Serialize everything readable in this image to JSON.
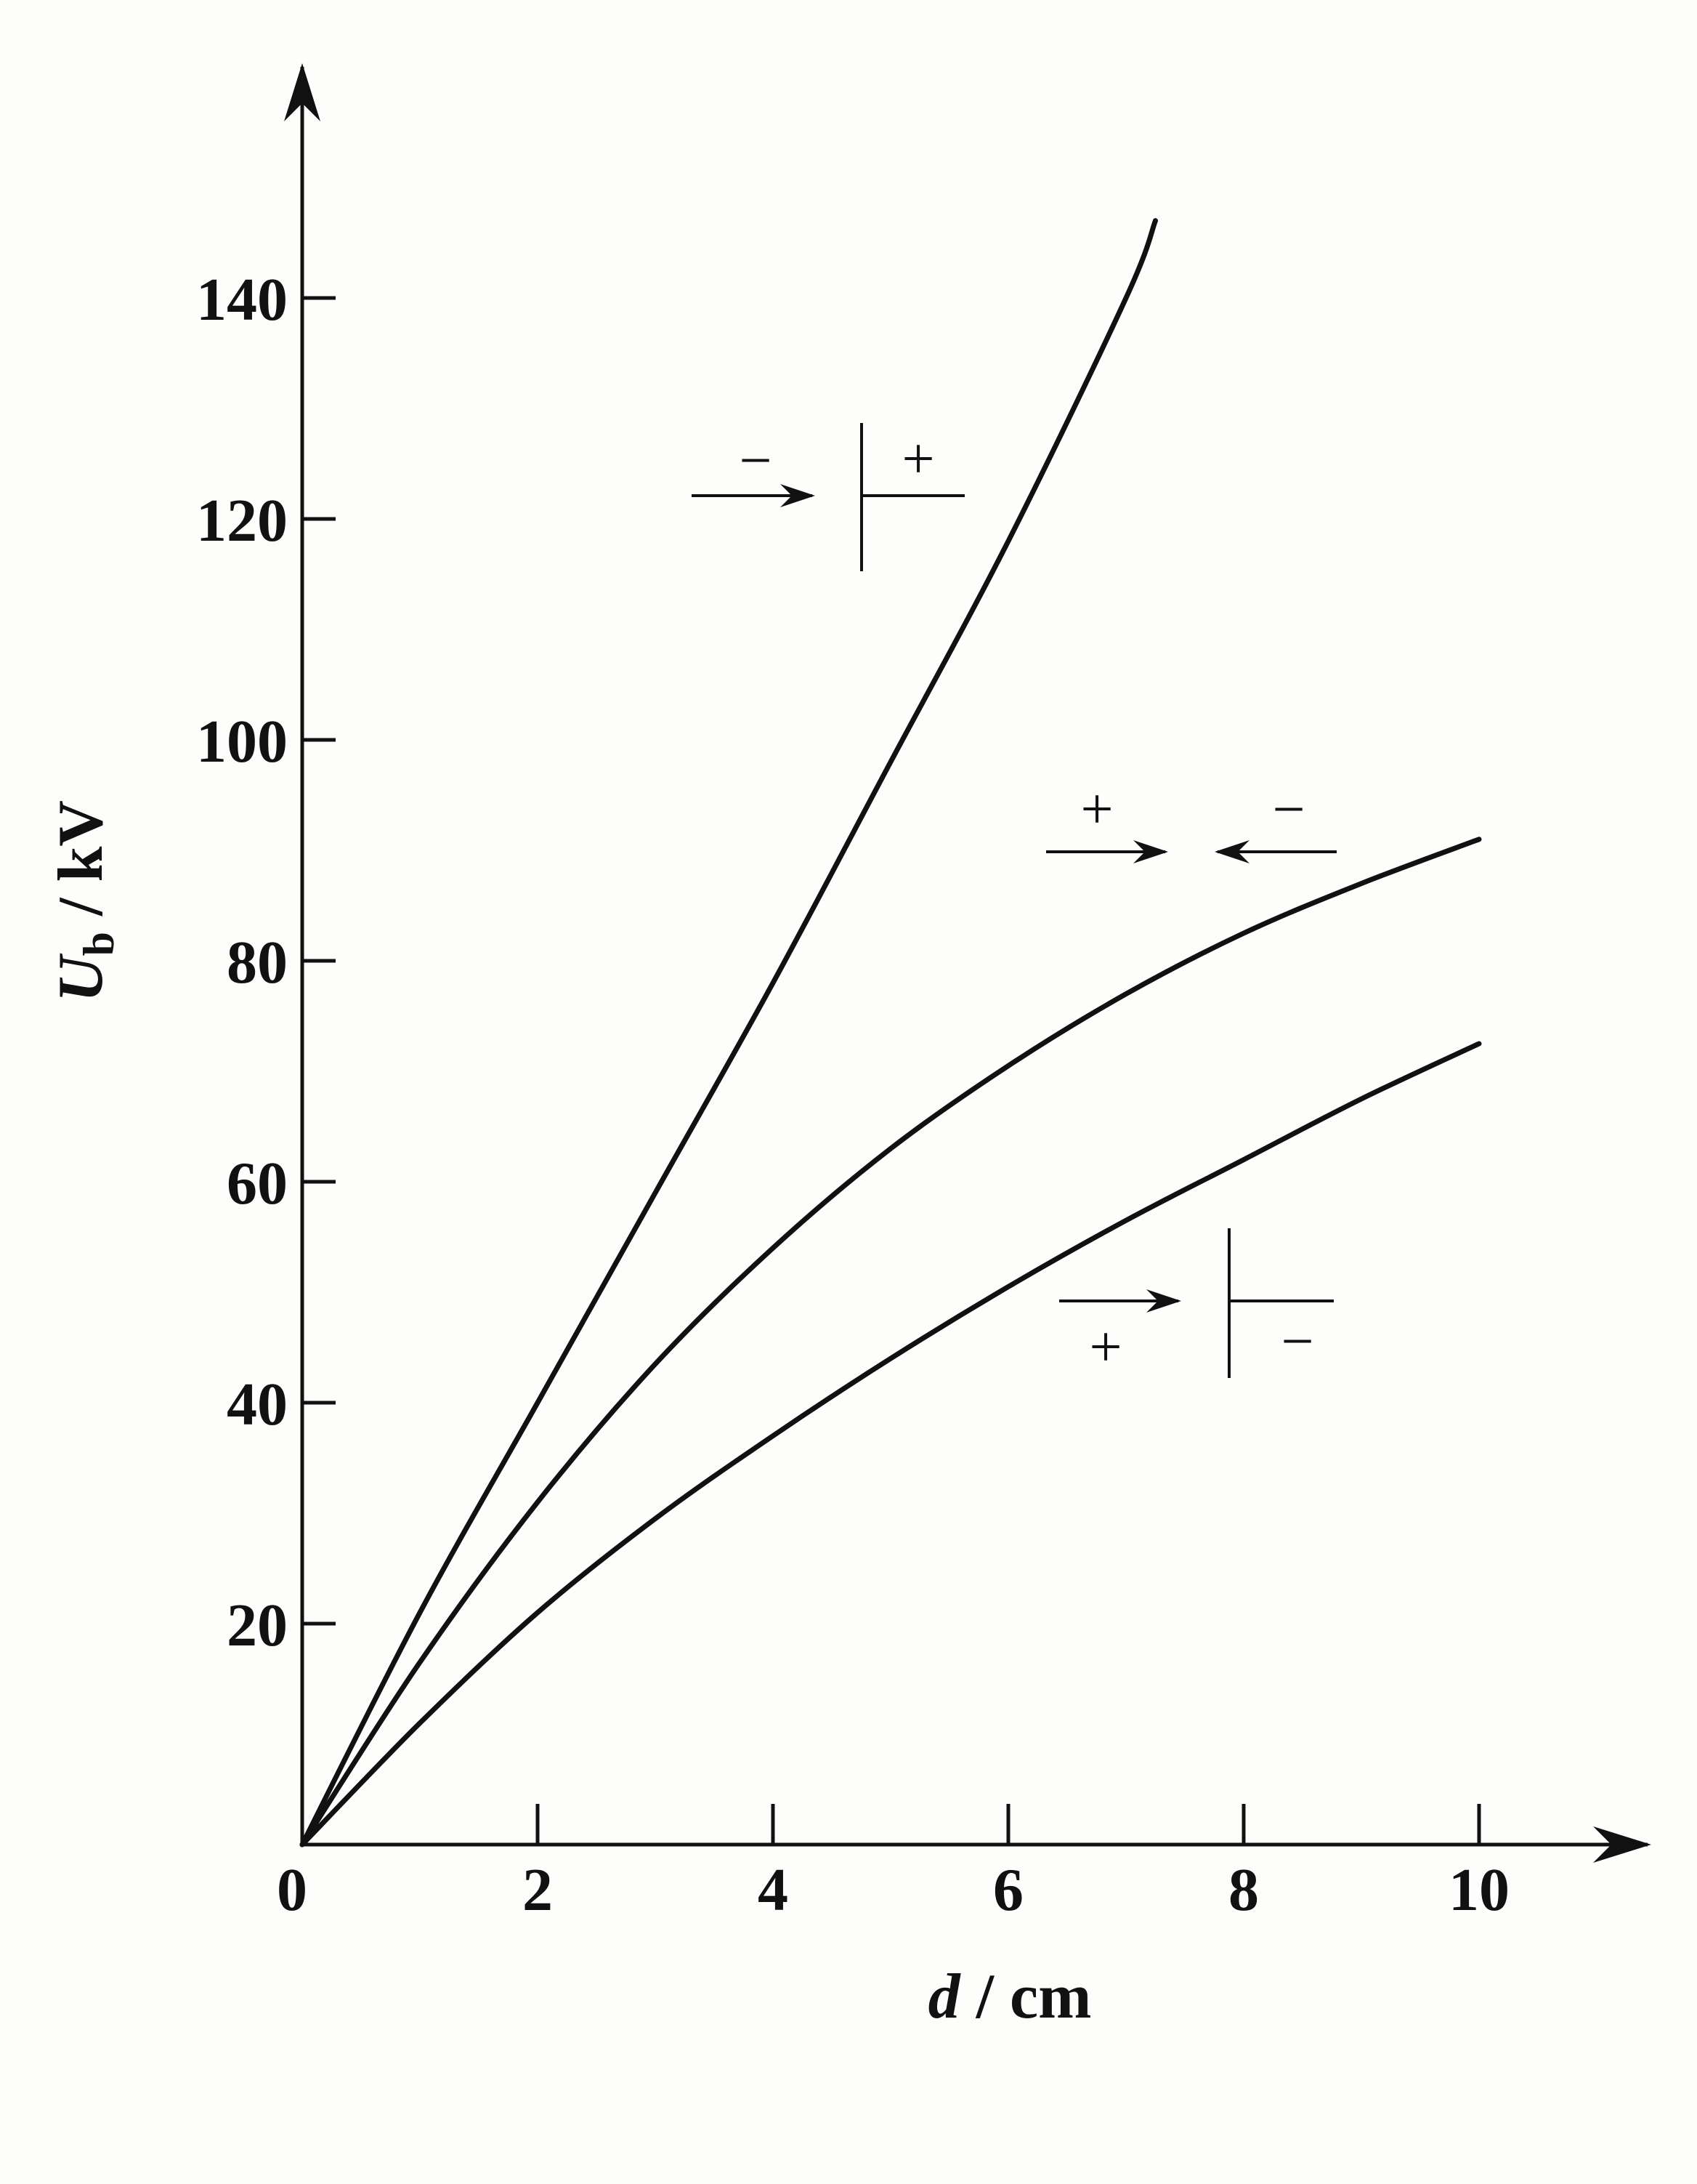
{
  "chart_data": {
    "type": "line",
    "xlabel": {
      "italic": "d",
      "rest": " / cm"
    },
    "ylabel": {
      "italic": "U",
      "sub": "b",
      "rest": " / kV"
    },
    "xlim": [
      0,
      11.5
    ],
    "ylim": [
      0,
      150
    ],
    "x_ticks": [
      0,
      2,
      4,
      6,
      8,
      10
    ],
    "x_tick_labels": [
      "0",
      "2",
      "4",
      "6",
      "8",
      "10"
    ],
    "y_ticks": [
      20,
      40,
      60,
      80,
      100,
      120,
      140
    ],
    "y_tick_labels": [
      "20",
      "40",
      "60",
      "80",
      "100",
      "120",
      "140"
    ],
    "grid": false,
    "legend": "none",
    "series": [
      {
        "x": [
          0,
          1,
          2,
          3,
          4,
          5,
          6,
          7,
          7.25
        ],
        "y": [
          0,
          21,
          40,
          59,
          78,
          98,
          118,
          140,
          147
        ]
      },
      {
        "x": [
          0,
          1,
          2,
          3,
          4,
          5,
          6,
          7,
          8,
          9,
          10
        ],
        "y": [
          0,
          16.5,
          31,
          43.5,
          54,
          63,
          70.5,
          77,
          82.5,
          87,
          91
        ]
      },
      {
        "x": [
          0,
          1,
          2,
          3,
          4,
          5,
          6,
          7,
          8,
          9,
          10
        ],
        "y": [
          0,
          11,
          21,
          29.5,
          37,
          44,
          50.5,
          56.5,
          62,
          67.5,
          72.5
        ]
      }
    ],
    "annotations": [
      {
        "signs": [
          "−",
          "+"
        ]
      },
      {
        "signs": [
          "+",
          "−"
        ]
      },
      {
        "signs": [
          "+",
          "−"
        ]
      }
    ]
  }
}
